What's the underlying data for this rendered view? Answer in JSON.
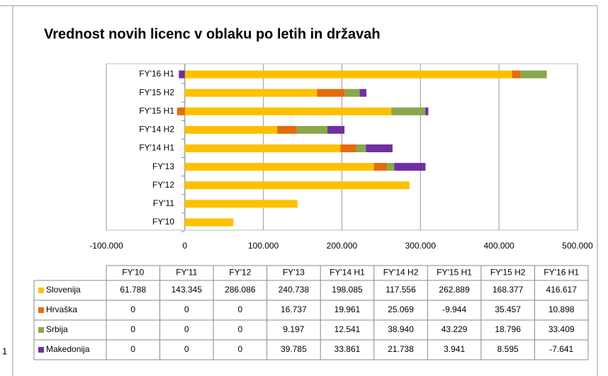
{
  "chart_data": {
    "type": "stacked_barh",
    "title": "Vrednost novih licenc v oblaku po letih in državah",
    "categories": [
      "FY'10",
      "FY'11",
      "FY'12",
      "FY'13",
      "FY'14 H1",
      "FY'14 H2",
      "FY'15 H1",
      "FY'15 H2",
      "FY'16 H1"
    ],
    "series": [
      {
        "name": "Slovenija",
        "color": "#ffc000",
        "values": [
          61788,
          143345,
          286086,
          240738,
          198085,
          117556,
          262889,
          168377,
          416617
        ],
        "value_labels": [
          "61.788",
          "143.345",
          "286.086",
          "240.738",
          "198.085",
          "117.556",
          "262.889",
          "168.377",
          "416.617"
        ]
      },
      {
        "name": "Hrvaška",
        "color": "#e46c0a",
        "values": [
          0,
          0,
          0,
          16737,
          19961,
          25069,
          -9944,
          35457,
          10898
        ],
        "value_labels": [
          "0",
          "0",
          "0",
          "16.737",
          "19.961",
          "25.069",
          "-9.944",
          "35.457",
          "10.898"
        ]
      },
      {
        "name": "Srbija",
        "color": "#8aa84a",
        "values": [
          0,
          0,
          0,
          9197,
          12541,
          38940,
          43229,
          18796,
          33409
        ],
        "value_labels": [
          "0",
          "0",
          "0",
          "9.197",
          "12.541",
          "38.940",
          "43.229",
          "18.796",
          "33.409"
        ]
      },
      {
        "name": "Makedonija",
        "color": "#7030a0",
        "values": [
          0,
          0,
          0,
          39785,
          33861,
          21738,
          3941,
          8595,
          -7641
        ],
        "value_labels": [
          "0",
          "0",
          "0",
          "39.785",
          "33.861",
          "21.738",
          "3.941",
          "8.595",
          "-7.641"
        ]
      }
    ],
    "xlim": [
      -100000,
      500000
    ],
    "xticks": [
      {
        "value": -100000,
        "label": "-100.000"
      },
      0,
      {
        "value": 100000,
        "label": "100.000"
      },
      {
        "value": 200000,
        "label": "200.000"
      },
      {
        "value": 300000,
        "label": "300.000"
      },
      {
        "value": 400000,
        "label": "400.000"
      },
      {
        "value": 500000,
        "label": "500.000"
      }
    ],
    "grid": true,
    "stray_text": "1"
  }
}
